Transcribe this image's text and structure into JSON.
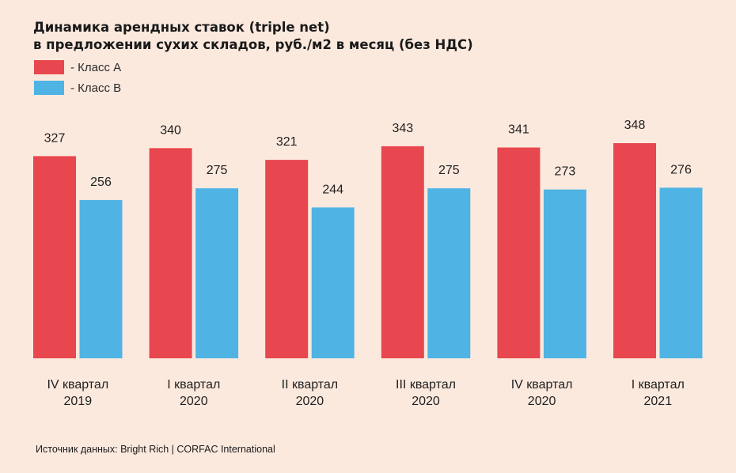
{
  "chart_data": {
    "type": "bar",
    "title_lines": [
      "Динамика арендных ставок (triple net)",
      "в предложении сухих складов, руб./м2 в месяц (без НДС)"
    ],
    "categories": [
      [
        "IV квартал",
        "2019"
      ],
      [
        "I квартал",
        "2020"
      ],
      [
        "II квартал",
        "2020"
      ],
      [
        "III квартал",
        "2020"
      ],
      [
        "IV квартал",
        "2020"
      ],
      [
        "I квартал",
        "2021"
      ]
    ],
    "series": [
      {
        "name": "- Класс А",
        "color": "#e8474f",
        "values": [
          327,
          340,
          321,
          343,
          341,
          348
        ]
      },
      {
        "name": "- Класс В",
        "color": "#4fb3e4",
        "values": [
          256,
          275,
          244,
          275,
          273,
          276
        ]
      }
    ],
    "ylim": [
      0,
      350
    ],
    "grid": false,
    "legend_position": "top-left"
  },
  "source": "Источник данных: Bright Rich | CORFAC International"
}
